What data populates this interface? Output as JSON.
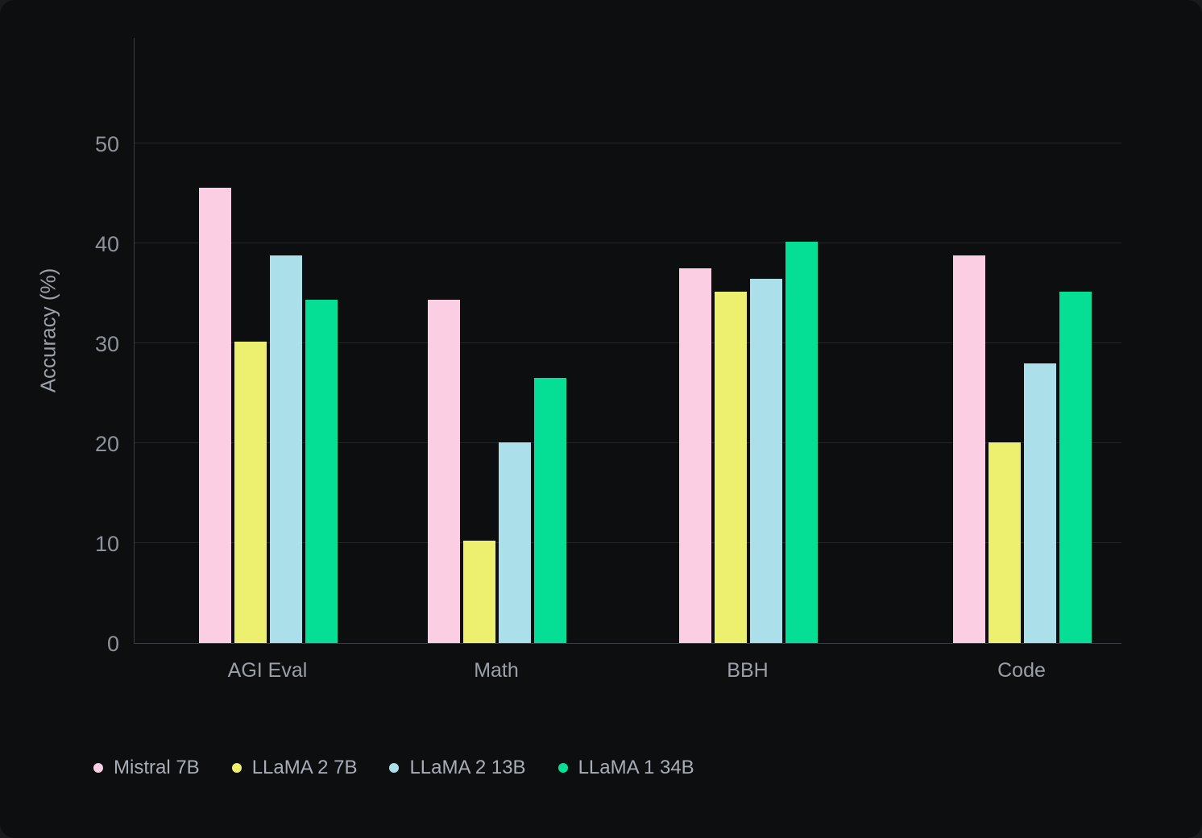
{
  "chart_data": {
    "type": "bar",
    "title": "",
    "categories": [
      "AGI Eval",
      "Math",
      "BBH",
      "Code"
    ],
    "series": [
      {
        "name": "Mistral 7B",
        "color": "#FCCEE3",
        "values": [
          45.5,
          34.3,
          37.5,
          38.8
        ]
      },
      {
        "name": "LLaMA 2 7B",
        "color": "#EDF06E",
        "values": [
          30.1,
          10.2,
          35.1,
          20.1
        ]
      },
      {
        "name": "LLaMA 2 13B",
        "color": "#ABDFE9",
        "values": [
          38.8,
          20.1,
          36.4,
          28.0
        ]
      },
      {
        "name": "LLaMA 1 34B",
        "color": "#05DF96",
        "values": [
          34.3,
          26.5,
          40.1,
          35.1
        ]
      }
    ],
    "xlabel": "",
    "ylabel": "Accuracy (%)",
    "yticks": [
      0,
      10,
      20,
      30,
      40,
      50
    ],
    "ylim": [
      0,
      60
    ],
    "grid": true,
    "legend_position": "bottom-left"
  },
  "colors": {
    "outer_background": "#1A1B1D",
    "panel_background": "#0D0E0F",
    "gridline": "#242628",
    "axis_line": "#3B3E43",
    "tick_text": "#8E939B",
    "label_text": "#9BA0A8",
    "legend_text": "#A9AEB6"
  }
}
